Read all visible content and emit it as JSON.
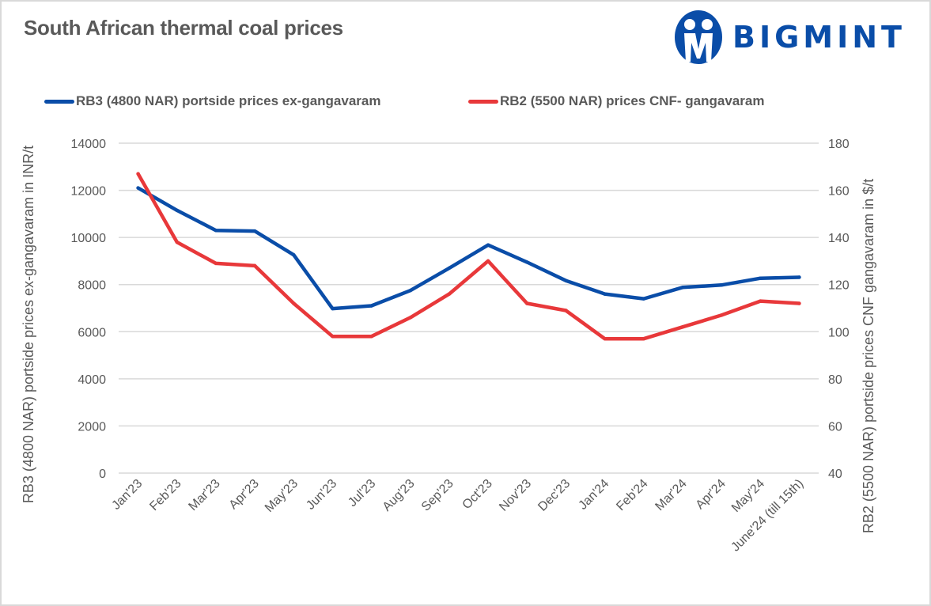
{
  "header": {
    "title": "South African thermal coal prices",
    "brand": "BIGMINT",
    "brand_color": "#0a4da8"
  },
  "chart_data": {
    "type": "line",
    "title": "South African thermal coal prices",
    "categories": [
      "Jan'23",
      "Feb'23",
      "Mar'23",
      "Apr'23",
      "May'23",
      "Jun'23",
      "Jul'23",
      "Aug'23",
      "Sep'23",
      "Oct'23",
      "Nov'23",
      "Dec'23",
      "Jan'24",
      "Feb'24",
      "Mar'24",
      "Apr'24",
      "May'24",
      "June'24 (till 15th)"
    ],
    "series": [
      {
        "name": "RB3 (4800 NAR) portside prices ex-gangavaram",
        "axis": "left",
        "color": "#0a4da8",
        "values": [
          12100,
          11150,
          10300,
          10270,
          9260,
          6980,
          7100,
          7750,
          8700,
          9680,
          8950,
          8170,
          7600,
          7400,
          7880,
          7980,
          8270,
          8310
        ]
      },
      {
        "name": "RB2 (5500 NAR) prices CNF- gangavaram",
        "axis": "right",
        "color": "#e8383a",
        "values": [
          167,
          138,
          129,
          128,
          112,
          98,
          98,
          106,
          116,
          130,
          112,
          109,
          97,
          97,
          102,
          107,
          113,
          112
        ]
      }
    ],
    "ylabel": "RB3 (4800 NAR) portside prices ex-gangavaram in INR/t",
    "ylim": [
      0,
      14000
    ],
    "yticks": [
      "0",
      "2000",
      "4000",
      "6000",
      "8000",
      "10000",
      "12000",
      "14000"
    ],
    "y2label": "RB2 (5500 NAR) portside prices CNF  gangavaram in $/t",
    "y2lim": [
      40,
      180
    ],
    "y2ticks": [
      "40",
      "60",
      "80",
      "100",
      "120",
      "140",
      "160",
      "180"
    ],
    "xlabel": "",
    "grid": true,
    "legend_position": "top"
  }
}
